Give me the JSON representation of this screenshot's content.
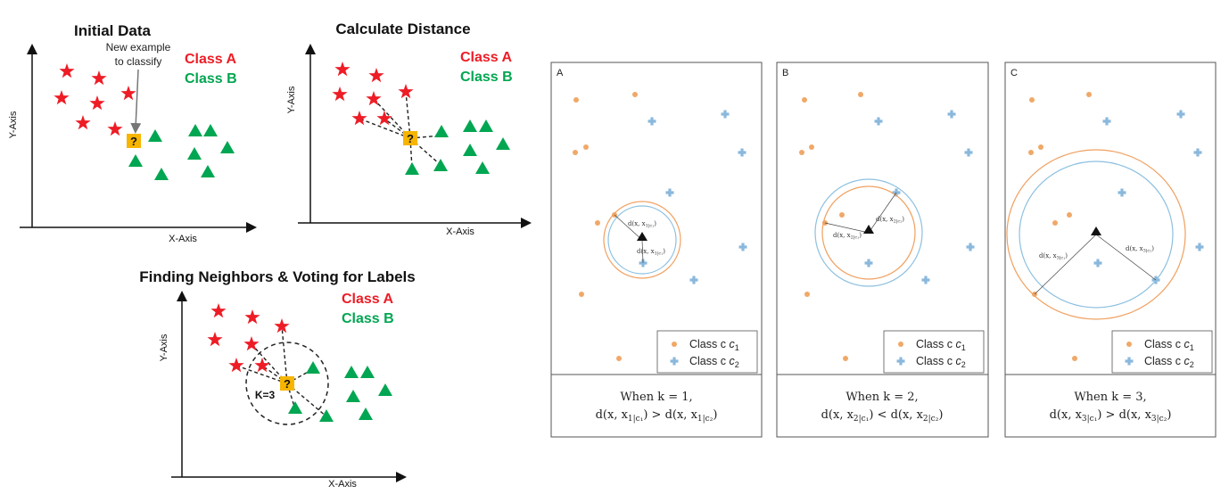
{
  "left_diagrams": {
    "initial": {
      "title": "Initial Data",
      "class_a": "Class A",
      "class_b": "Class B",
      "annotation_line1": "New example",
      "annotation_line2": "to classify",
      "x_axis": "X-Axis",
      "y_axis": "Y-Axis",
      "query_mark": "?"
    },
    "distance": {
      "title": "Calculate Distance",
      "class_a": "Class A",
      "class_b": "Class B",
      "x_axis": "X-Axis",
      "y_axis": "Y-Axis",
      "query_mark": "?"
    },
    "voting": {
      "title": "Finding Neighbors & Voting for Labels",
      "class_a": "Class A",
      "class_b": "Class B",
      "x_axis": "X-Axis",
      "y_axis": "Y-Axis",
      "query_mark": "?",
      "k_label": "K=3"
    }
  },
  "panels": [
    {
      "label": "A",
      "legend_c1": "Class c",
      "legend_c2": "Class c",
      "caption_line1": "When k = 1,"
    },
    {
      "label": "B",
      "legend_c1": "Class c",
      "legend_c2": "Class c",
      "caption_line1": "When k = 2,"
    },
    {
      "label": "C",
      "legend_c1": "Class c",
      "legend_c2": "Class c",
      "caption_line1": "When k = 3,"
    }
  ],
  "colors": {
    "class_a": "#ee1c25",
    "class_b": "#00a651",
    "query": "#f7b500",
    "orange_point": "#f0a868",
    "blue_point": "#8ab8dc",
    "orange_ring": "#f0a060",
    "blue_ring": "#8cc0e0"
  }
}
